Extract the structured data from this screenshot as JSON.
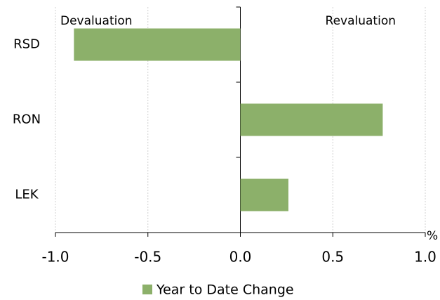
{
  "chart_data": {
    "type": "bar",
    "orientation": "horizontal",
    "categories": [
      "RSD",
      "RON",
      "LEK"
    ],
    "series": [
      {
        "name": "Year to Date Change",
        "color": "#8cb06a",
        "values": [
          -0.9,
          0.77,
          0.26
        ]
      }
    ],
    "xlim": [
      -1,
      1
    ],
    "xticks": [
      {
        "value": -1,
        "label": "-1.0"
      },
      -0.5,
      {
        "value": 0,
        "label": "0.0"
      },
      0.5,
      {
        "value": 1,
        "label": "1.0"
      }
    ],
    "x_unit": "%",
    "annotations": [
      "Devaluation",
      "Revaluation"
    ],
    "grid": true,
    "legend": "bottom"
  }
}
